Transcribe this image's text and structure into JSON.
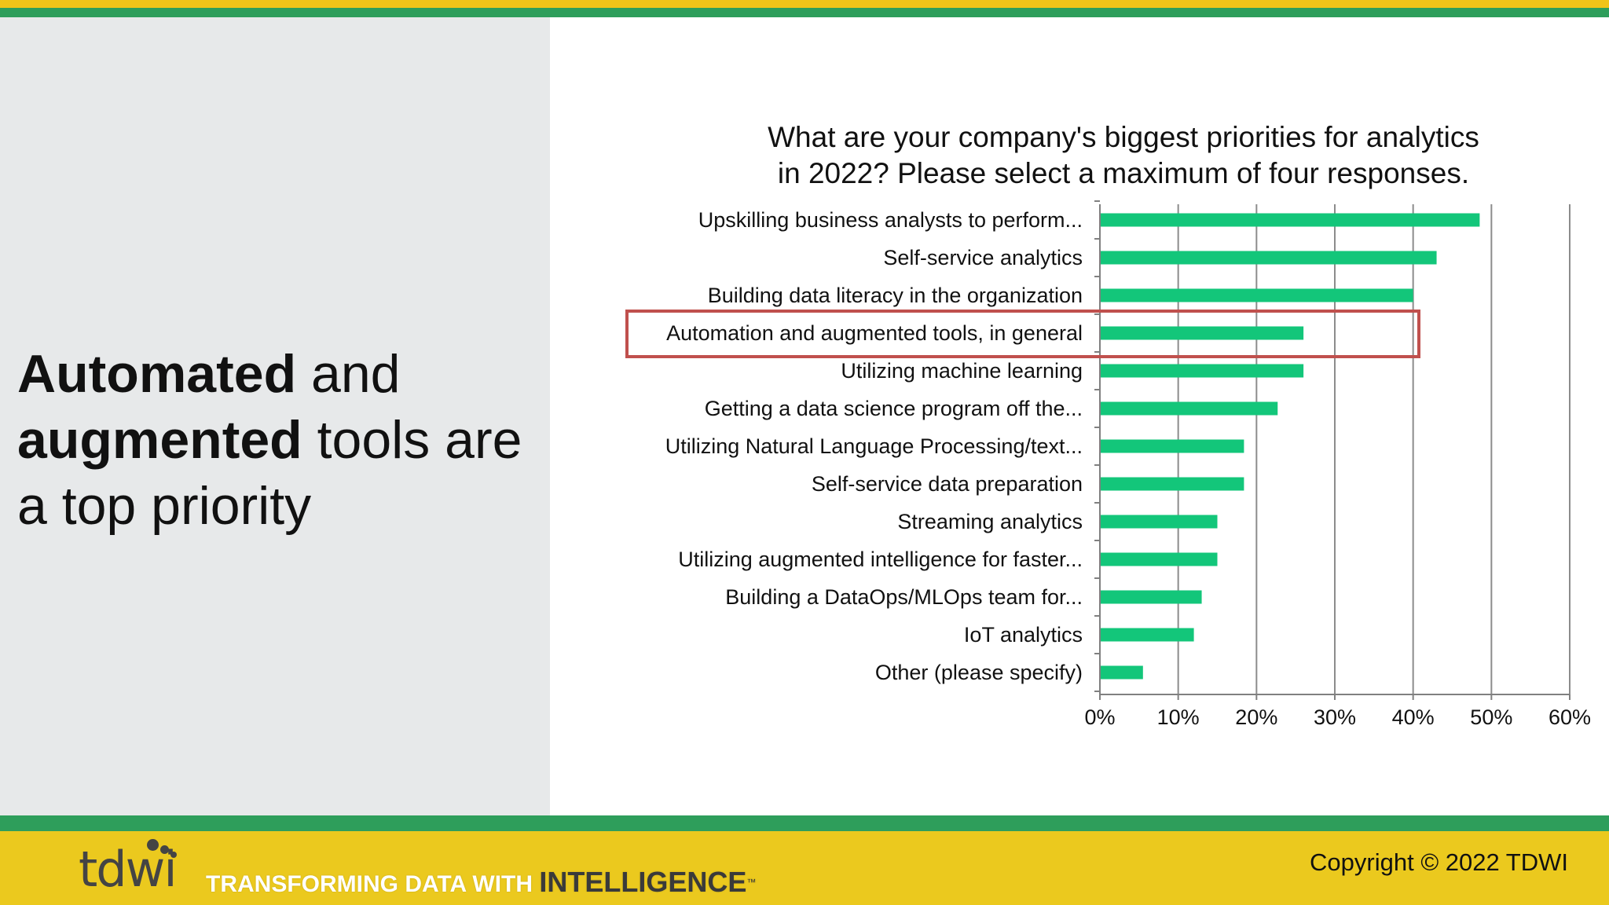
{
  "colors": {
    "top_yellow": "#f0c419",
    "brand_green": "#2e9e5b",
    "footer_yellow": "#ebc91e",
    "left_panel": "#e7e9ea",
    "bar_green": "#13c67a",
    "highlight_red": "#c0504d",
    "gridline": "#8c8c8c"
  },
  "headline": {
    "bold_1": "Automated",
    "text_1": " and",
    "bold_2": "augmented",
    "text_2": " tools are",
    "text_3": "a top priority"
  },
  "chart_data": {
    "type": "bar",
    "orientation": "horizontal",
    "title": "What are your company's biggest priorities for analytics in 2022?  Please select a maximum of four responses.",
    "title_lines": [
      "What are your company's biggest priorities for analytics",
      "in 2022?  Please select a maximum of four responses."
    ],
    "categories": [
      "Upskilling business analysts to perform...",
      "Self-service analytics",
      "Building data literacy in the organization",
      "Automation and augmented tools, in general",
      "Utilizing machine learning",
      "Getting a data science program off the...",
      "Utilizing Natural Language Processing/text...",
      "Self-service data preparation",
      "Streaming analytics",
      "Utilizing augmented intelligence for faster...",
      "Building a DataOps/MLOps team for...",
      "IoT analytics",
      "Other (please specify)"
    ],
    "values": [
      48.5,
      43,
      40,
      26,
      26,
      22.7,
      18.4,
      18.4,
      15,
      15,
      13,
      12,
      5.5
    ],
    "unit": "%",
    "xlim": [
      0,
      60
    ],
    "xticks": [
      0,
      10,
      20,
      30,
      40,
      50,
      60
    ],
    "xtick_labels": [
      "0%",
      "10%",
      "20%",
      "30%",
      "40%",
      "50%",
      "60%"
    ],
    "grid": true,
    "highlighted_category": "Automation and augmented tools, in general"
  },
  "footer": {
    "logo_text": "tdwi",
    "tagline_light": "TRANSFORMING DATA WITH ",
    "tagline_strong": "INTELLIGENCE",
    "tagline_tm": "™",
    "copyright": "Copyright © 2022 TDWI"
  }
}
